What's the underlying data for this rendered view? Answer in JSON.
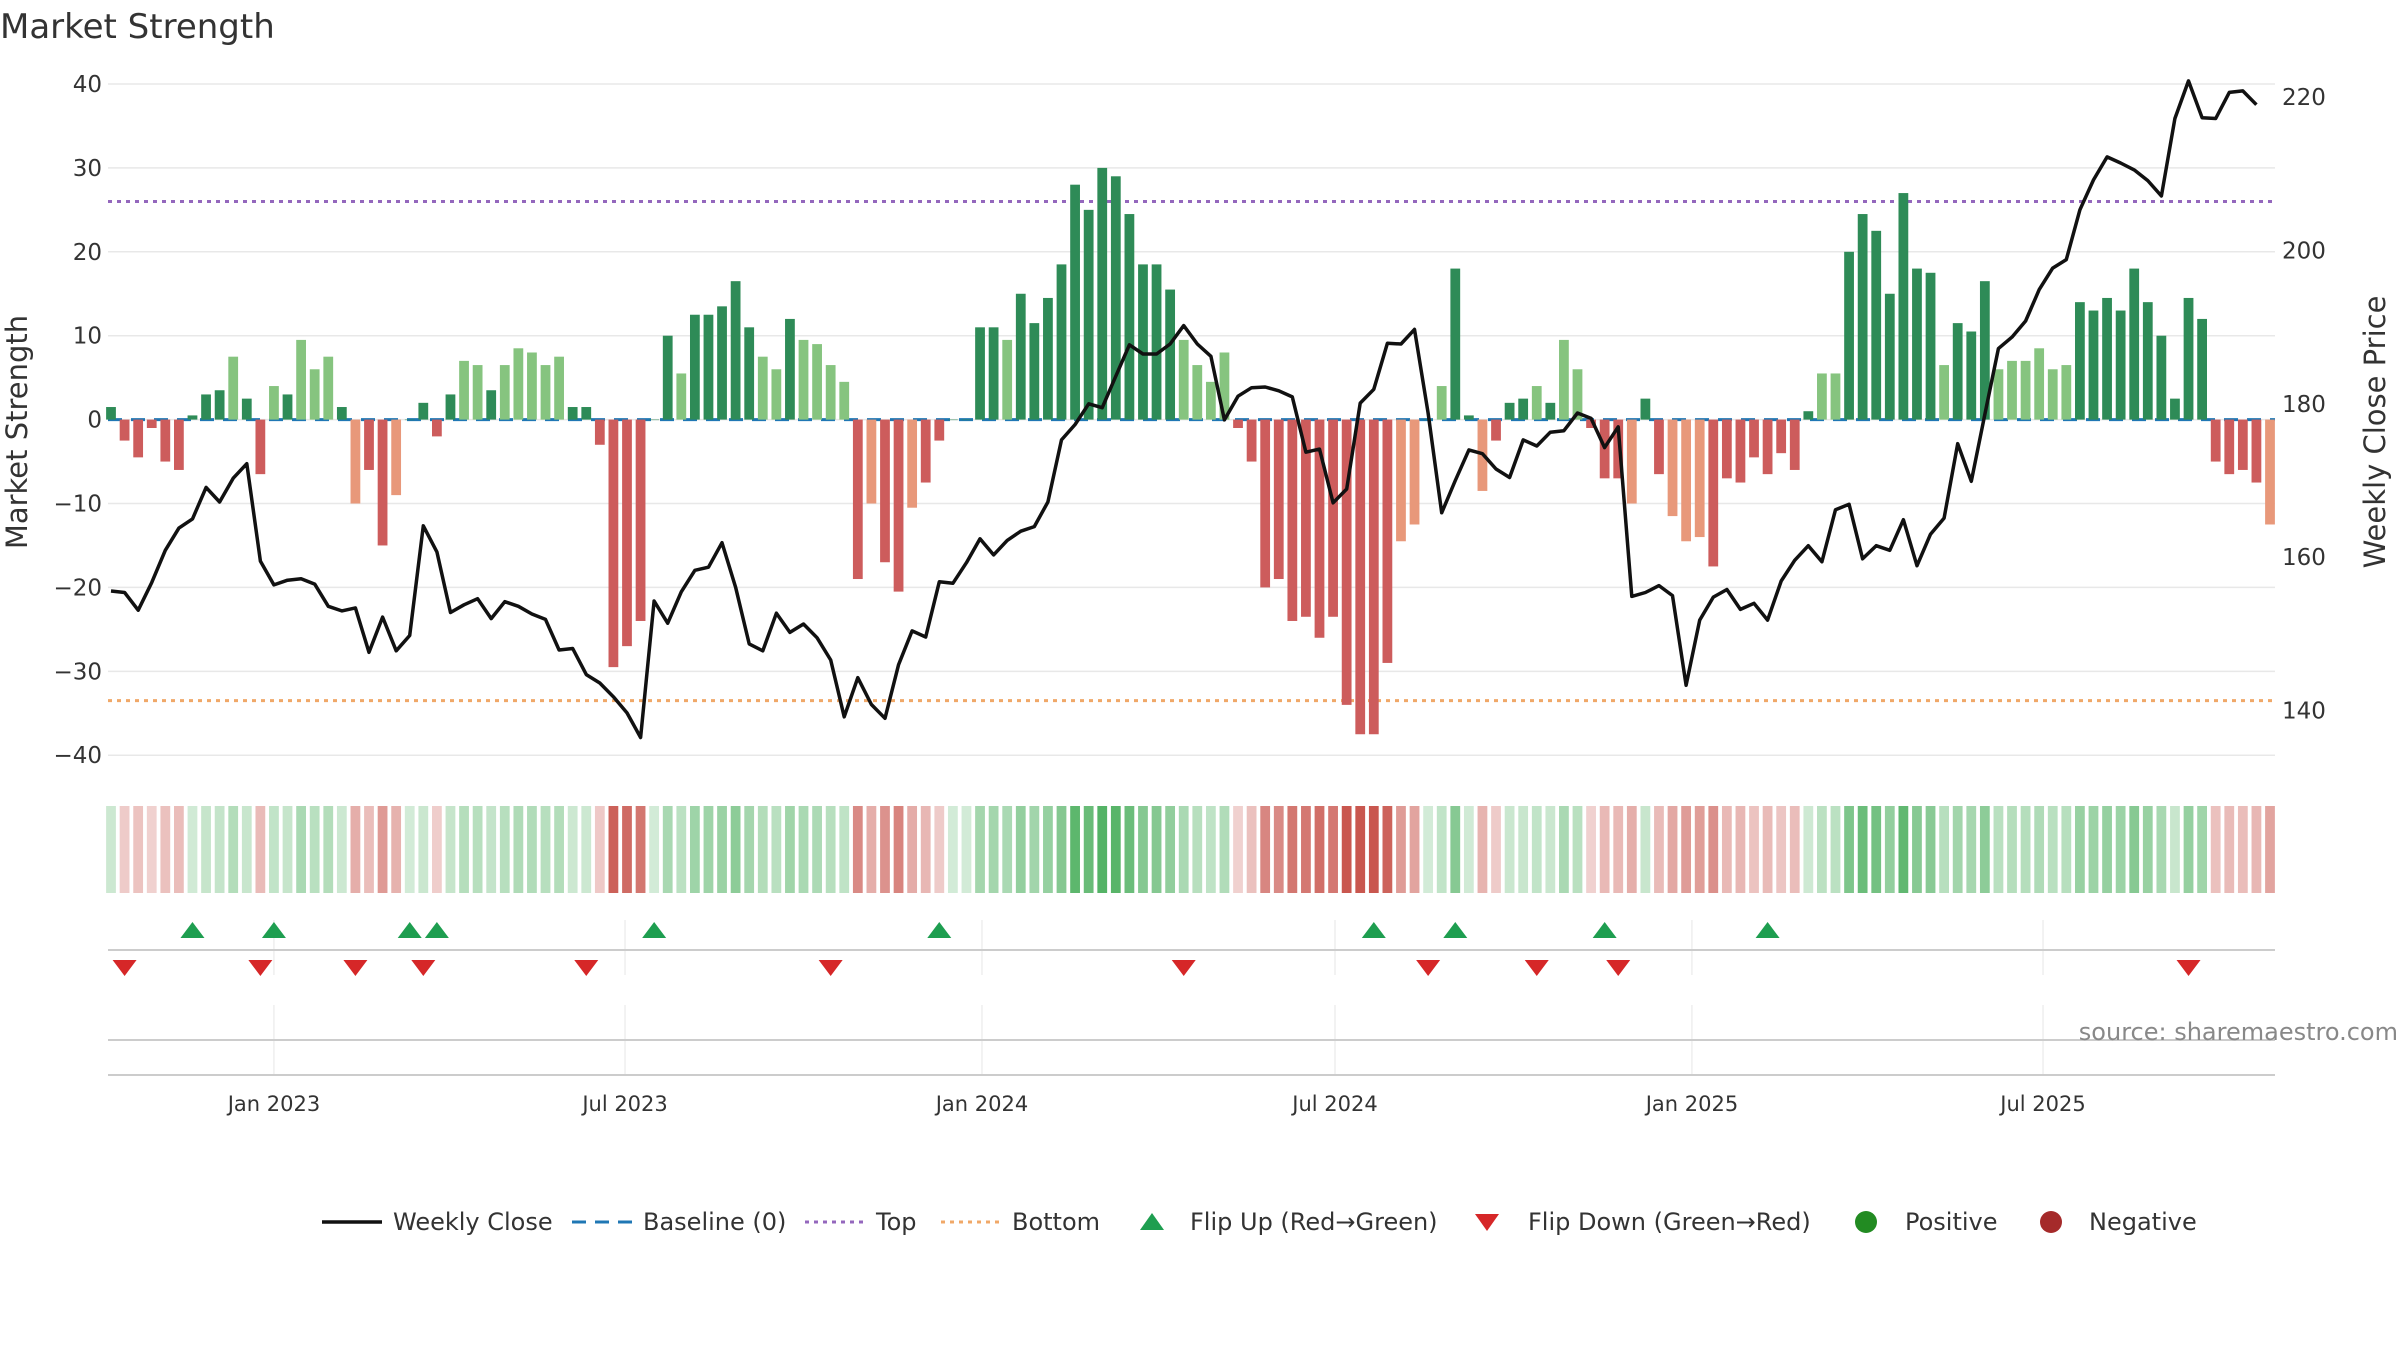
{
  "chart_data": {
    "type": "bar",
    "title": "Market Strength",
    "ylabel": "Market Strength",
    "y2label": "Weekly Close Price",
    "ylim": [
      -42,
      40
    ],
    "y2lim": [
      132.0,
      221.7
    ],
    "yticks": [
      40,
      30,
      20,
      10,
      0,
      -10,
      -20,
      -30,
      -40
    ],
    "y2ticks": [
      220,
      200,
      180,
      160,
      140
    ],
    "top_level": 26,
    "bottom_level": -33.5,
    "x_start": "2022-10-09",
    "x_step_days": 7,
    "x_ticks": [
      "Jan 2023",
      "Jul 2023",
      "Jan 2024",
      "Jul 2024",
      "Jan 2025",
      "Jul 2025"
    ],
    "values": [
      1.5,
      -2.5,
      -4.5,
      -1,
      -5,
      -6,
      0.5,
      3,
      3.5,
      7.5,
      2.5,
      -6.5,
      4,
      3,
      9.5,
      6,
      7.5,
      1.5,
      -10,
      -6,
      -15,
      -9,
      0,
      2,
      -2,
      3,
      7,
      6.5,
      3.5,
      6.5,
      8.5,
      8,
      6.5,
      7.5,
      1.5,
      1.5,
      -3,
      -29.5,
      -27,
      -24,
      0,
      10,
      5.5,
      12.5,
      12.5,
      13.5,
      16.5,
      11,
      7.5,
      6,
      12,
      9.5,
      9,
      6.5,
      4.5,
      -19,
      -10,
      -17,
      -20.5,
      -10.5,
      -7.5,
      -2.5,
      0,
      0,
      11,
      11,
      9.5,
      15,
      11.5,
      14.5,
      18.5,
      28,
      25,
      30,
      29,
      24.5,
      18.5,
      18.5,
      15.5,
      9.5,
      6.5,
      4.5,
      8,
      -1,
      -5,
      -20,
      -19,
      -24,
      -23.5,
      -26,
      -23.5,
      -34,
      -37.5,
      -37.5,
      -29,
      -14.5,
      -12.5,
      0,
      4,
      18,
      0.5,
      -8.5,
      -2.5,
      2,
      2.5,
      4,
      2,
      9.5,
      6,
      -1,
      -7,
      -7,
      -10,
      2.5,
      -6.5,
      -11.5,
      -14.5,
      -14,
      -17.5,
      -7,
      -7.5,
      -4.5,
      -6.5,
      -4,
      -6,
      1,
      5.5,
      5.5,
      20,
      24.5,
      22.5,
      15,
      27,
      18,
      17.5,
      6.5,
      11.5,
      10.5,
      16.5,
      6,
      7,
      7,
      8.5,
      6,
      6.5,
      14,
      13,
      14.5,
      13,
      18,
      14,
      10,
      2.5,
      14.5,
      12,
      -5,
      -6.5,
      -6,
      -7.5,
      -12.5
    ],
    "weekly_close": [
      155.6,
      155.4,
      153.1,
      156.7,
      160.9,
      163.8,
      165.0,
      169.1,
      167.2,
      170.3,
      172.2,
      159.5,
      156.4,
      157.0,
      157.2,
      156.5,
      153.6,
      153.0,
      153.4,
      147.6,
      152.2,
      147.8,
      149.8,
      164.1,
      160.7,
      152.8,
      153.8,
      154.6,
      152.0,
      154.2,
      153.6,
      152.6,
      151.9,
      147.9,
      148.1,
      144.7,
      143.6,
      141.8,
      139.7,
      136.5,
      154.3,
      151.4,
      155.5,
      158.3,
      158.7,
      161.9,
      156.1,
      148.7,
      147.8,
      152.7,
      150.2,
      151.3,
      149.5,
      146.6,
      139.2,
      144.3,
      140.8,
      139.0,
      146.0,
      150.4,
      149.6,
      156.8,
      156.6,
      159.3,
      162.4,
      160.3,
      162.2,
      163.4,
      164.0,
      167.2,
      175.3,
      177.3,
      180.0,
      179.5,
      183.6,
      187.7,
      186.5,
      186.5,
      187.8,
      190.2,
      187.8,
      186.2,
      177.9,
      181.0,
      182.1,
      182.2,
      181.7,
      180.9,
      173.7,
      174.1,
      167.1,
      168.9,
      180.1,
      181.9,
      187.9,
      187.8,
      189.7,
      178.8,
      165.8,
      170.0,
      174.0,
      173.5,
      171.5,
      170.4,
      175.3,
      174.5,
      176.3,
      176.5,
      178.8,
      178.1,
      174.3,
      177.0,
      154.9,
      155.4,
      156.3,
      155.0,
      143.3,
      151.8,
      154.8,
      155.8,
      153.2,
      154.0,
      151.8,
      156.9,
      159.6,
      161.5,
      159.4,
      166.2,
      166.9,
      159.8,
      161.5,
      160.9,
      164.9,
      158.9,
      163.0,
      165.1,
      174.8,
      169.9,
      178.6,
      187.2,
      188.7,
      190.8,
      194.9,
      197.7,
      198.8,
      205.3,
      209.2,
      212.2,
      211.4,
      210.5,
      209.1,
      207.1,
      217.2,
      222.1,
      217.3,
      217.2,
      220.6,
      220.8,
      219.0
    ],
    "flip_up_weeks": [
      6,
      12,
      22,
      24,
      40,
      61,
      93,
      99,
      110,
      122
    ],
    "flip_down_weeks": [
      1,
      11,
      18,
      23,
      35,
      53,
      79,
      97,
      105,
      111,
      153
    ],
    "legend": [
      "Weekly Close",
      "Baseline (0)",
      "Top",
      "Bottom",
      "Flip Up (Red→Green)",
      "Flip Down (Green→Red)",
      "Positive",
      "Negative"
    ]
  },
  "source_text": "source: sharemaestro.com",
  "colors": {
    "pos_dark": "#2e8b57",
    "pos_light": "#86c47f",
    "neg_dark": "#cd5c5c",
    "neg_light": "#e8987a",
    "close_line": "#111111",
    "baseline": "#1f77b4",
    "top_line": "#9467bd",
    "bottom_line": "#f0a868",
    "flip_up": "#1e9e50",
    "flip_down": "#d62728",
    "legend_positive": "#228b22",
    "legend_negative": "#a52a2a"
  }
}
